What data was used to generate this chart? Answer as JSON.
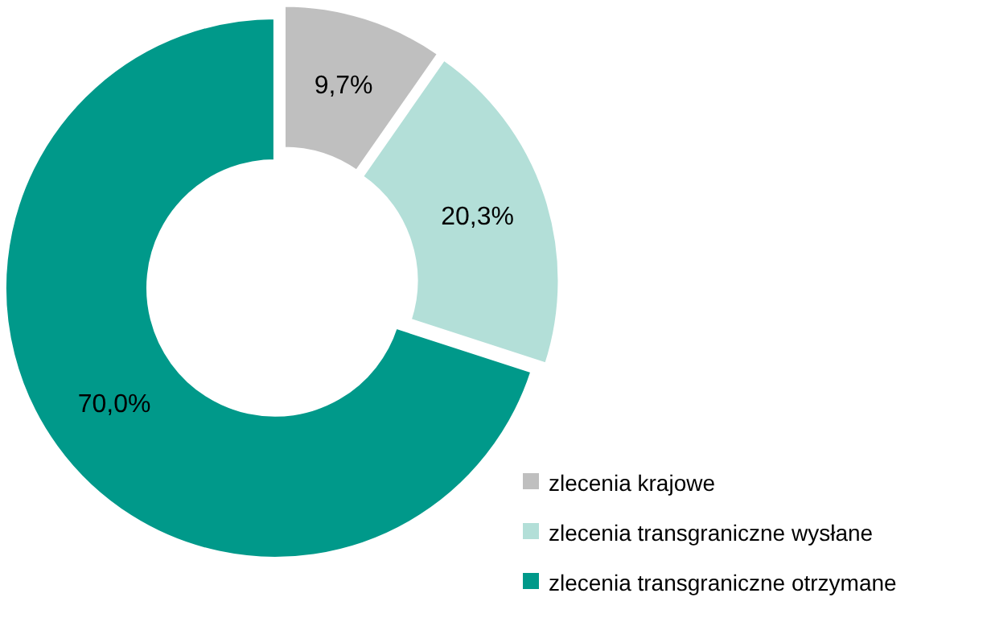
{
  "chart_data": {
    "type": "donut",
    "categories": [
      "zlecenia krajowe",
      "zlecenia transgraniczne wysłane",
      "zlecenia transgraniczne otrzymane"
    ],
    "values": [
      9.7,
      20.3,
      70.0
    ],
    "colors": [
      "#bfbfbf",
      "#b3dfd8",
      "#00998a"
    ],
    "value_labels": [
      "9,7%",
      "20,3%",
      "70,0%"
    ],
    "legend": "bottom right"
  }
}
